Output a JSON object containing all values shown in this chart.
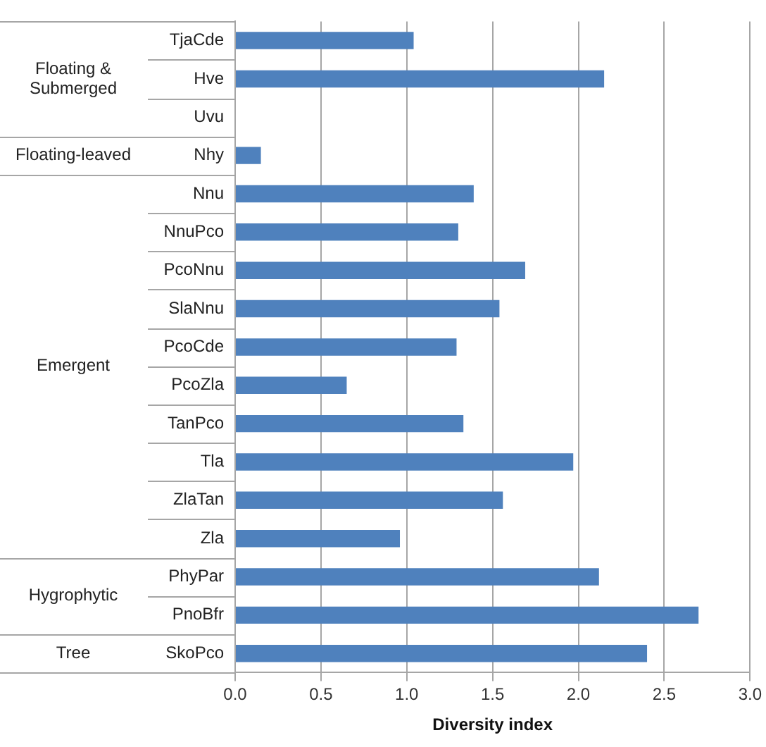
{
  "chart_data": {
    "type": "bar",
    "orientation": "horizontal",
    "xlabel": "Diversity index",
    "categories": [
      "TjaCde",
      "Hve",
      "Uvu",
      "Nhy",
      "Nnu",
      "NnuPco",
      "PcoNnu",
      "SlaNnu",
      "PcoCde",
      "PcoZla",
      "TanPco",
      "Tla",
      "ZlaTan",
      "Zla",
      "PhyPar",
      "PnoBfr",
      "SkoPco"
    ],
    "values": [
      1.04,
      2.15,
      0,
      0.15,
      1.39,
      1.3,
      1.69,
      1.54,
      1.29,
      0.65,
      1.33,
      1.97,
      1.56,
      0.96,
      2.12,
      2.7,
      2.4
    ],
    "color": "#4f81bd",
    "xlim": [
      0,
      3
    ],
    "xticks": [
      {
        "value": 0,
        "label": "0.0"
      },
      {
        "value": 0.5,
        "label": "0.5"
      },
      {
        "value": 1,
        "label": "1.0"
      },
      {
        "value": 1.5,
        "label": "1.5"
      },
      {
        "value": 2,
        "label": "2.0"
      },
      {
        "value": 2.5,
        "label": "2.5"
      },
      {
        "value": 3,
        "label": "3.0"
      }
    ],
    "grid": "x",
    "legend": false,
    "annotations": [
      "Floating & Submerged",
      "Floating-leaved",
      "Emergent",
      "Hygrophytic",
      "Tree"
    ]
  }
}
